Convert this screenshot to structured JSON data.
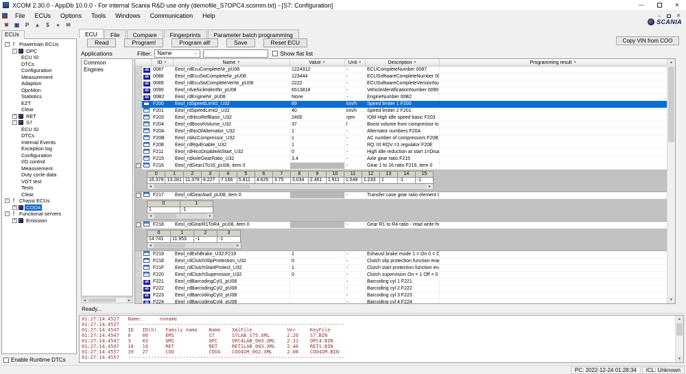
{
  "window": {
    "title": "XCOM 2.30.0 - AppDb 10.0.0 - For internal Scania R&D use only (demofile_S7OPC4.scomm.txt) - [S7: Configuration]",
    "menu_items": [
      "File",
      "ECUs",
      "Options",
      "Tools",
      "Windows",
      "Communication",
      "Help"
    ],
    "toolbar_icons": [
      {
        "name": "abort-icon",
        "glyph": "✖",
        "color": "#a42222"
      },
      {
        "name": "save-icon",
        "glyph": "▣",
        "color": "#333a6b"
      },
      {
        "name": "program-icon",
        "glyph": "P",
        "color": "#444444"
      },
      {
        "name": "dtc-warning-icon",
        "glyph": "▲",
        "color": "#c02020"
      },
      {
        "name": "cost-icon",
        "glyph": "$",
        "color": "#1f6b1f"
      },
      {
        "name": "communication-icon",
        "glyph": "●",
        "color": "#3c7a3c"
      },
      {
        "name": "mail-icon",
        "glyph": "✉",
        "color": "#55557a"
      }
    ],
    "brand": "SCANIA"
  },
  "sidebar": {
    "tab_label": "ECUs",
    "tree": [
      {
        "label": "Powertrain ECUs",
        "level": 0,
        "expander": "-",
        "icon": "warning"
      },
      {
        "label": "OPC",
        "level": 1,
        "expander": "-",
        "icon": "ecu"
      },
      {
        "label": "ECU ID",
        "level": 2
      },
      {
        "label": "DTCs",
        "level": 2
      },
      {
        "label": "Configuration",
        "level": 2
      },
      {
        "label": "Measurement",
        "level": 2
      },
      {
        "label": "Adaption",
        "level": 2
      },
      {
        "label": "OpcMon",
        "level": 2
      },
      {
        "label": "Statistics",
        "level": 2
      },
      {
        "label": "EZT",
        "level": 2
      },
      {
        "label": "Clear",
        "level": 2
      },
      {
        "label": "RET",
        "level": 1,
        "expander": "+",
        "icon": "ecu"
      },
      {
        "label": "S7",
        "level": 1,
        "expander": "-",
        "icon": "ecu"
      },
      {
        "label": "ECU ID",
        "level": 2
      },
      {
        "label": "DTCs",
        "level": 2
      },
      {
        "label": "Internal Events",
        "level": 2
      },
      {
        "label": "Exception log",
        "level": 2
      },
      {
        "label": "Configuration",
        "level": 2
      },
      {
        "label": "I/O control",
        "level": 2
      },
      {
        "label": "Measurement",
        "level": 2
      },
      {
        "label": "Duty cycle data",
        "level": 2
      },
      {
        "label": "VGT test",
        "level": 2
      },
      {
        "label": "Tests",
        "level": 2
      },
      {
        "label": "Clear",
        "level": 2
      },
      {
        "label": "Chassi ECUs",
        "level": 0,
        "expander": "-",
        "icon": "warning"
      },
      {
        "label": "COO4",
        "level": 1,
        "expander": "+",
        "icon": "ecu",
        "selected": true
      },
      {
        "label": "Functional servers",
        "level": 0,
        "expander": "-",
        "icon": "warning"
      },
      {
        "label": "Emission",
        "level": 1,
        "expander": "+",
        "icon": "ecu"
      }
    ],
    "enable_runtime_dtcs_label": "Enable Runtime DTCs"
  },
  "main": {
    "tabs": [
      "ECU",
      "File",
      "Compare",
      "Fingerprints",
      "Parameter batch programming"
    ],
    "active_tab": "ECU",
    "buttons": [
      "Read",
      "Program!",
      "Program all!",
      "Save",
      "Reset ECU"
    ],
    "copy_vin_label": "Copy VIN from COO",
    "applications_label": "Applications",
    "filter_label": "Filter:",
    "filter_value": "Name",
    "filter_input_value": "",
    "show_flat_list_label": "Show flat list",
    "app_list": [
      "Common",
      "Engines"
    ],
    "table": {
      "headers": [
        "ID",
        "Name",
        "Value",
        "Unit",
        "Description",
        "Programming result"
      ],
      "rows": [
        {
          "icon": "ab",
          "id": "0087",
          "name": "Eeol_rdEcuCompleteNr_pU08",
          "value": "1224312",
          "unit": "-",
          "desc": "ECUCompleteNumber 0087"
        },
        {
          "icon": "ab",
          "id": "0088",
          "name": "Eeol_rdEcuSwCompleteNr_pU08",
          "value": "123444",
          "unit": "-",
          "desc": "ECUSoftwareCompleteNumber 0088"
        },
        {
          "icon": "ab",
          "id": "0089",
          "name": "Eeol_rdEcuSwCompleteVerNr_pU08",
          "value": "2222",
          "unit": "-",
          "desc": "ECUSoftwareCompleteVersionNumb"
        },
        {
          "icon": "ab",
          "id": "0090",
          "name": "Eeol_rdvehicleIdentNr_pU08",
          "value": "6513818",
          "unit": "-",
          "desc": "VehicleIdentificationNumber 0090"
        },
        {
          "icon": "ab",
          "id": "00B2",
          "name": "Eeol_rdEngineNr_pU08",
          "value": "None",
          "unit": "-",
          "desc": "EngineNumber 00B2"
        },
        {
          "icon": "grid",
          "id": "F200",
          "name": "Eeol_rdSpeedLimit1_U32",
          "value": "89",
          "unit": "km/h",
          "desc": "Speed limiter 1 F200",
          "selected": true
        },
        {
          "icon": "grid",
          "id": "F201",
          "name": "Eeol_rdSpeedLimit2_U32",
          "value": "40",
          "unit": "km/h",
          "desc": "Speed limiter 2 F201"
        },
        {
          "icon": "grid",
          "id": "F203",
          "name": "Eeol_rdHicoRefBasic_U32",
          "value": "2400",
          "unit": "rpm",
          "desc": "IOM High idle speed  basic F203"
        },
        {
          "icon": "grid",
          "id": "F204",
          "name": "Eeol_rdBoostVolume_U32",
          "value": "37",
          "unit": "l",
          "desc": "Boost volume from compressor to inle"
        },
        {
          "icon": "grid",
          "id": "F20A",
          "name": "Eeol_rdNoOfAlternator_U32",
          "value": "1",
          "unit": "-",
          "desc": "Alternator numbers F20A"
        },
        {
          "icon": "grid",
          "id": "F20B",
          "name": "Eeol_rdAcCompressor_U32",
          "value": "1",
          "unit": "-",
          "desc": "AC number of compressors F20B"
        },
        {
          "icon": "grid",
          "id": "F20E",
          "name": "Eeol_rdRqvEnable_U32",
          "value": "1",
          "unit": "-",
          "desc": "RQ =0  RQV =1 regulator F20E"
        },
        {
          "icon": "grid",
          "id": "F211",
          "name": "Eeol_rdHicoDisableAtStart_U32",
          "value": "0",
          "unit": "-",
          "desc": "High idle reduction at start  1=Disable"
        },
        {
          "icon": "grid",
          "id": "F215",
          "name": "Eeol_rdAxleGearRatio_U32",
          "value": "3.4",
          "unit": "-",
          "desc": "Axle gear ratio F215"
        },
        {
          "icon": "grid",
          "id": "F216",
          "name": "Eeol_rdGear1To16_pU08, item 0",
          "value": "",
          "unit": "-",
          "desc": "Gear 1 to 16 ratio F216, item 0",
          "gray_value": true,
          "expander": "-",
          "subtable": {
            "cols": [
              "0",
              "1",
              "2",
              "3",
              "4",
              "5",
              "6",
              "7",
              "8",
              "9",
              "10",
              "11",
              "12",
              "13",
              "14",
              "15"
            ],
            "vals": [
              "16.379",
              "13.281",
              "11.379",
              "9.227",
              "7.166",
              "5.811",
              "4.625",
              "3.75",
              "3.034",
              "2.461",
              "1.911",
              "1.549",
              "1.233",
              "1",
              "-1",
              "-1"
            ]
          }
        },
        {
          "icon": "grid",
          "id": "F217",
          "name": "Eeol_rdGearAwd_pU08, item 0",
          "value": "",
          "unit": "-",
          "desc": "Transfer case gear ratio element 0 = l",
          "gray_value": true,
          "expander": "-",
          "subtable": {
            "cols": [
              "0",
              "1"
            ],
            "vals": [
              "1",
              "-1"
            ]
          }
        },
        {
          "icon": "grid",
          "id": "F218",
          "name": "Eeol_rdGearR1ToR4_pU08, item 0",
          "value": "",
          "unit": "-",
          "desc": "Gear R1 to R4 ratio - read write from t",
          "gray_value": true,
          "expander": "-",
          "subtable": {
            "cols": [
              "0",
              "1",
              "2",
              "3"
            ],
            "vals": [
              "14.741",
              "11.953",
              "-1",
              "-1"
            ]
          }
        },
        {
          "icon": "grid",
          "id": "F219",
          "name": "Eeol_rdExhBrake_U32.F219",
          "value": "1",
          "unit": "-",
          "desc": "Exhaust brake mode 1 = On  0 = Off F"
        },
        {
          "icon": "grid",
          "id": "F21E",
          "name": "Eeol_rdClutchSlipProtection_U32",
          "value": "0",
          "unit": "-",
          "desc": "Clutch slip protection function enable"
        },
        {
          "icon": "grid",
          "id": "F21F",
          "name": "Eeol_rdClutchStartProtect_U32",
          "value": "1",
          "unit": "-",
          "desc": "Clutch start protection function enable"
        },
        {
          "icon": "grid",
          "id": "F220",
          "name": "Eeol_rdClutchSupervision_U32",
          "value": "0",
          "unit": "-",
          "desc": "Clutch supervision On = 1 Off = 0 F22"
        },
        {
          "icon": "ab",
          "id": "F221",
          "name": "Eeol_rdBarcodingCyl1_pU08",
          "value": "",
          "unit": "-",
          "desc": "Barcoding cyl 1 F221"
        },
        {
          "icon": "ab",
          "id": "F222",
          "name": "Eeol_rdBarcodingCyl2_pU08",
          "value": "",
          "unit": "-",
          "desc": "Barcoding cyl 2 F222"
        },
        {
          "icon": "ab",
          "id": "F223",
          "name": "Eeol_rdBarcodingCyl3_pU08",
          "value": "",
          "unit": "-",
          "desc": "Barcoding cyl 3 F223"
        },
        {
          "icon": "ab",
          "id": "F224",
          "name": "Eeol_rdBarcodingCyl4_pU08",
          "value": "",
          "unit": "-",
          "desc": "Barcoding cyl 4 F224"
        }
      ]
    }
  },
  "log": {
    "ready": "Ready...",
    "lines": [
      "01:27:14.4527   Name:      noname",
      "01:27:14.4527   ---------------------------------------------------------------------------",
      "01:27:14.4547   ID   ID(h)   Family name    Name    XmlFile            Ver     KeyFile",
      "01:27:14.4547   0    00      EMS            S7      S7LAB_S75.XML      2.20    S7.BIN",
      "01:27:14.4547   3    03      GMS            OPC     OPC4LAB_003.XML    2.31    OPC4.BIN",
      "01:27:14.4547   16   10      RET            RET     RET1LAB_003.XML    2.40    RET1.BIN",
      "01:27:14.4557   39   27      COO            COO4    COO4IM_002.XML     2.08    COO4IM.BIN",
      "01:27:14.4557   ---------------------------------------------------------------------------"
    ]
  },
  "statusbar": {
    "pc": "PC: 2022-12-24 01:28:34",
    "icl": "ICL: Unknown"
  }
}
